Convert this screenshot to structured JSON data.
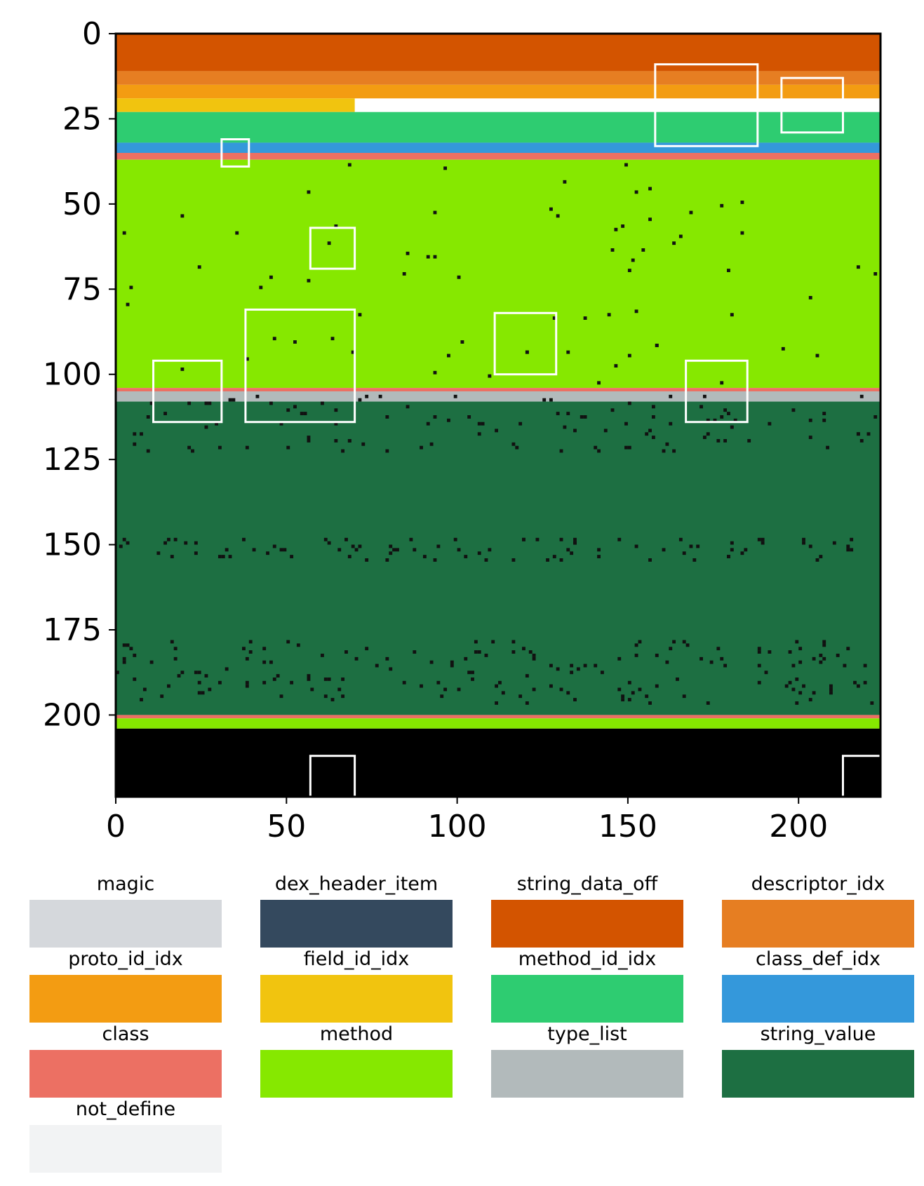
{
  "chart_data": {
    "type": "heatmap",
    "title": "",
    "xlabel": "",
    "ylabel": "",
    "xlim": [
      0,
      224
    ],
    "ylim": [
      224,
      0
    ],
    "x_ticks": [
      "0",
      "50",
      "100",
      "150",
      "200"
    ],
    "x_tick_values": [
      0,
      50,
      100,
      150,
      200
    ],
    "y_ticks": [
      "0",
      "25",
      "50",
      "75",
      "100",
      "125",
      "150",
      "175",
      "200"
    ],
    "y_tick_values": [
      0,
      25,
      50,
      75,
      100,
      125,
      150,
      175,
      200
    ],
    "bands": [
      {
        "category": "dex_header_item",
        "y0": 0,
        "y1": 1,
        "x0": 5,
        "x1": 56
      },
      {
        "category": "string_data_off",
        "y0": 0,
        "y1": 11
      },
      {
        "category": "descriptor_idx",
        "y0": 11,
        "y1": 15
      },
      {
        "category": "proto_id_idx",
        "y0": 15,
        "y1": 19
      },
      {
        "category": "field_id_idx",
        "y0": 19,
        "y1": 23,
        "x0": 0,
        "x1": 70
      },
      {
        "category": "method_id_idx",
        "y0": 23,
        "y1": 32
      },
      {
        "category": "class_def_idx",
        "y0": 32,
        "y1": 35
      },
      {
        "category": "class",
        "y0": 35,
        "y1": 37
      },
      {
        "category": "method",
        "y0": 37,
        "y1": 104
      },
      {
        "category": "class",
        "y0": 104,
        "y1": 105
      },
      {
        "category": "type_list",
        "y0": 105,
        "y1": 108
      },
      {
        "category": "string_value",
        "y0": 108,
        "y1": 200
      },
      {
        "category": "class",
        "y0": 200,
        "y1": 201
      },
      {
        "category": "method",
        "y0": 201,
        "y1": 204
      },
      {
        "category": "not_define_black",
        "y0": 204,
        "y1": 224
      }
    ],
    "highlight_boxes": [
      {
        "x0": 158,
        "y0": 9,
        "x1": 188,
        "y1": 33
      },
      {
        "x0": 195,
        "y0": 13,
        "x1": 213,
        "y1": 29
      },
      {
        "x0": 31,
        "y0": 31,
        "x1": 39,
        "y1": 39
      },
      {
        "x0": 57,
        "y0": 57,
        "x1": 70,
        "y1": 69
      },
      {
        "x0": 38,
        "y0": 81,
        "x1": 70,
        "y1": 114
      },
      {
        "x0": 111,
        "y0": 82,
        "x1": 129,
        "y1": 100
      },
      {
        "x0": 11,
        "y0": 96,
        "x1": 31,
        "y1": 114
      },
      {
        "x0": 167,
        "y0": 96,
        "x1": 185,
        "y1": 114
      },
      {
        "x0": 57,
        "y0": 212,
        "x1": 70,
        "y1": 224
      },
      {
        "x0": 213,
        "y0": 212,
        "x1": 224,
        "y1": 224
      }
    ],
    "legend": [
      {
        "label": "magic",
        "color": "#d5d8dc"
      },
      {
        "label": "dex_header_item",
        "color": "#34495e"
      },
      {
        "label": "string_data_off",
        "color": "#d35400"
      },
      {
        "label": "descriptor_idx",
        "color": "#e67e22"
      },
      {
        "label": "proto_id_idx",
        "color": "#f39c12"
      },
      {
        "label": "field_id_idx",
        "color": "#f1c40f"
      },
      {
        "label": "method_id_idx",
        "color": "#2ecc71"
      },
      {
        "label": "class_def_idx",
        "color": "#3498db"
      },
      {
        "label": "class",
        "color": "#ec7063"
      },
      {
        "label": "method",
        "color": "#86e800"
      },
      {
        "label": "type_list",
        "color": "#b2babb"
      },
      {
        "label": "string_value",
        "color": "#1d6f42"
      },
      {
        "label": "not_define",
        "color": "#f2f3f4"
      }
    ],
    "legend_placement": "bottom",
    "grid": false
  }
}
